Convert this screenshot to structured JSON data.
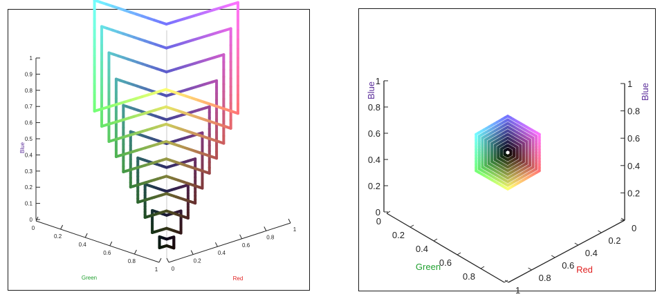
{
  "chart_data": [
    {
      "type": "line",
      "view": "3d-cube-front",
      "axes": {
        "blue": {
          "label": "Blue",
          "ticks": [
            "0",
            "0.1",
            "0.2",
            "0.3",
            "0.4",
            "0.5",
            "0.6",
            "0.7",
            "0.8",
            "0.9",
            "1"
          ],
          "range": [
            0,
            1
          ]
        },
        "green": {
          "label": "Green",
          "ticks": [
            "0",
            "0.2",
            "0.4",
            "0.6",
            "0.8",
            "1"
          ],
          "range": [
            0,
            1
          ]
        },
        "red": {
          "label": "Red",
          "ticks": [
            "0",
            "0.2",
            "0.4",
            "0.6",
            "0.8",
            "1"
          ],
          "range": [
            0,
            1
          ]
        }
      },
      "series_levels": [
        0.1,
        0.2,
        0.3,
        0.4,
        0.5,
        0.6,
        0.7,
        0.8,
        0.9,
        1.0
      ],
      "line_description": "hexagonal color loops of constant saturation, colored by their own RGB coordinates"
    },
    {
      "type": "line",
      "view": "3d-cube-gray-axis",
      "axes": {
        "blue": {
          "label": "Blue",
          "ticks": [
            "0",
            "0.2",
            "0.4",
            "0.6",
            "0.8",
            "1"
          ],
          "range": [
            0,
            1
          ]
        },
        "green": {
          "label": "Green",
          "ticks": [
            "0",
            "0.2",
            "0.4",
            "0.6",
            "0.8",
            "1"
          ],
          "range": [
            0,
            1
          ]
        },
        "red": {
          "label": "Red",
          "ticks": [
            "0",
            "0.2",
            "0.4",
            "0.6",
            "0.8",
            "1"
          ],
          "range": [
            0,
            1
          ]
        }
      },
      "series_levels": [
        0.1,
        0.2,
        0.3,
        0.4,
        0.5,
        0.6,
        0.7,
        0.8,
        0.9,
        1.0
      ]
    }
  ],
  "colors": {
    "blue_label": "#5b2d9a",
    "green_label": "#21a030",
    "red_label": "#e02020"
  }
}
